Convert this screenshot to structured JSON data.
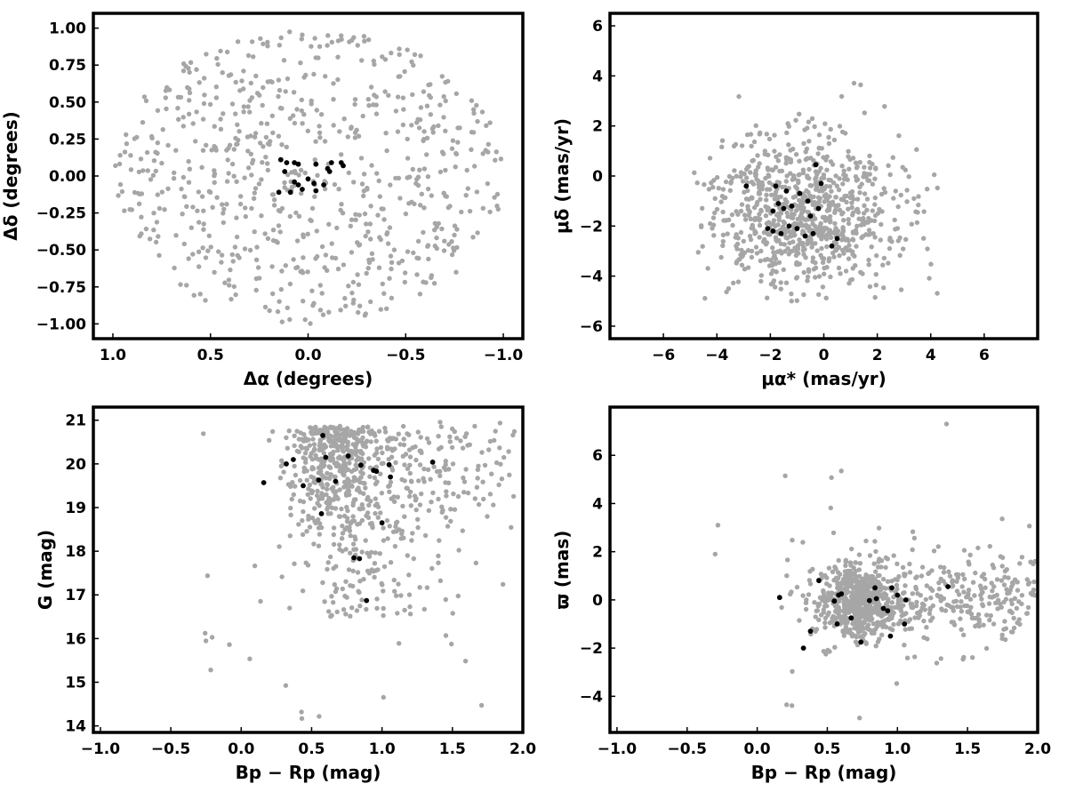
{
  "colors": {
    "field": "#a6a6a6",
    "members": "#000000"
  },
  "chart_data": [
    {
      "type": "scatter",
      "title": "",
      "xlabel": "Δα (degrees)",
      "ylabel": "Δδ (degrees)",
      "xlim": [
        1.1,
        -1.1
      ],
      "ylim": [
        -1.1,
        1.1
      ],
      "x_inverted": true,
      "xticks": [
        1.0,
        0.5,
        0.0,
        -0.5,
        -1.0
      ],
      "xtick_labels": [
        "1.0",
        "0.5",
        "0.0",
        "−0.5",
        "−1.0"
      ],
      "yticks": [
        -1.0,
        -0.75,
        -0.5,
        -0.25,
        0.0,
        0.25,
        0.5,
        0.75,
        1.0
      ],
      "ytick_labels": [
        "−1.00",
        "−0.75",
        "−0.50",
        "−0.25",
        "0.00",
        "0.25",
        "0.50",
        "0.75",
        "1.00"
      ],
      "grid": false,
      "field_gen": {
        "n": 700,
        "shape": "disk",
        "radius": 1.0,
        "seed": 11
      },
      "series": [
        {
          "role": "field",
          "values": []
        },
        {
          "role": "members",
          "values": [
            [
              0.14,
              0.11
            ],
            [
              0.12,
              0.03
            ],
            [
              0.11,
              0.09
            ],
            [
              0.07,
              0.09
            ],
            [
              0.05,
              0.08
            ],
            [
              0.15,
              -0.11
            ],
            [
              0.09,
              -0.11
            ],
            [
              0.07,
              -0.04
            ],
            [
              0.05,
              -0.06
            ],
            [
              0.03,
              -0.09
            ],
            [
              -0.03,
              -0.05
            ],
            [
              -0.04,
              -0.1
            ],
            [
              -0.04,
              0.08
            ],
            [
              -0.1,
              0.05
            ],
            [
              -0.11,
              0.03
            ],
            [
              -0.12,
              0.09
            ],
            [
              -0.08,
              -0.06
            ],
            [
              -0.17,
              0.09
            ],
            [
              -0.18,
              0.07
            ],
            [
              0.0,
              -0.02
            ]
          ]
        }
      ]
    },
    {
      "type": "scatter",
      "title": "",
      "xlabel": "μα* (mas/yr)",
      "ylabel": "μδ (mas/yr)",
      "xlim": [
        -8,
        8
      ],
      "ylim": [
        -6.5,
        6.5
      ],
      "x_inverted": false,
      "xticks": [
        -6,
        -4,
        -2,
        0,
        2,
        4,
        6
      ],
      "xtick_labels": [
        "−6",
        "−4",
        "−2",
        "0",
        "2",
        "4",
        "6"
      ],
      "yticks": [
        -6,
        -4,
        -2,
        0,
        2,
        4,
        6
      ],
      "ytick_labels": [
        "−6",
        "−4",
        "−2",
        "0",
        "2",
        "4",
        "6"
      ],
      "grid": false,
      "field_gen": {
        "n": 850,
        "shape": "gauss",
        "cx": -0.9,
        "cy": -1.6,
        "sx": 1.8,
        "sy": 1.6,
        "clip": [
          -4.9,
          4.8,
          -5.0,
          4.1
        ],
        "seed": 23
      },
      "series": [
        {
          "role": "field",
          "values": []
        },
        {
          "role": "members",
          "values": [
            [
              -0.3,
              0.45
            ],
            [
              -2.9,
              -0.4
            ],
            [
              -0.1,
              -0.3
            ],
            [
              -1.8,
              -0.4
            ],
            [
              -1.4,
              -0.6
            ],
            [
              -0.9,
              -0.7
            ],
            [
              -0.6,
              -1.0
            ],
            [
              -1.7,
              -1.1
            ],
            [
              -1.5,
              -1.3
            ],
            [
              -1.2,
              -1.2
            ],
            [
              -1.9,
              -1.4
            ],
            [
              -0.5,
              -1.6
            ],
            [
              -0.2,
              -1.3
            ],
            [
              -1.3,
              -2.0
            ],
            [
              -1.9,
              -2.2
            ],
            [
              -1.6,
              -2.3
            ],
            [
              -1.0,
              -2.1
            ],
            [
              -0.4,
              -2.3
            ],
            [
              -0.7,
              -2.4
            ],
            [
              0.5,
              -2.5
            ],
            [
              0.3,
              -2.8
            ],
            [
              -2.1,
              -2.1
            ]
          ]
        }
      ]
    },
    {
      "type": "scatter",
      "title": "",
      "xlabel": "Bp − Rp (mag)",
      "ylabel": "G (mag)",
      "xlim": [
        -1.05,
        2.0
      ],
      "ylim": [
        13.85,
        21.3
      ],
      "x_inverted": false,
      "xticks": [
        -1.0,
        -0.5,
        0.0,
        0.5,
        1.0,
        1.5,
        2.0
      ],
      "xtick_labels": [
        "−1.0",
        "−0.5",
        "0.0",
        "0.5",
        "1.0",
        "1.5",
        "2.0"
      ],
      "yticks": [
        14,
        15,
        16,
        17,
        18,
        19,
        20,
        21
      ],
      "ytick_labels": [
        "14",
        "15",
        "16",
        "17",
        "18",
        "19",
        "20",
        "21"
      ],
      "grid": false,
      "field_gen": {
        "n": 780,
        "shape": "cmd",
        "seed": 37
      },
      "series": [
        {
          "role": "field",
          "values": []
        },
        {
          "role": "members",
          "values": [
            [
              0.16,
              19.57
            ],
            [
              0.32,
              20.0
            ],
            [
              0.37,
              20.1
            ],
            [
              0.44,
              19.5
            ],
            [
              0.55,
              19.63
            ],
            [
              0.57,
              18.86
            ],
            [
              0.58,
              20.65
            ],
            [
              0.6,
              20.15
            ],
            [
              0.67,
              19.6
            ],
            [
              0.76,
              20.18
            ],
            [
              0.8,
              17.85
            ],
            [
              0.84,
              17.83
            ],
            [
              0.85,
              19.97
            ],
            [
              0.89,
              16.87
            ],
            [
              0.94,
              19.85
            ],
            [
              0.96,
              19.83
            ],
            [
              1.0,
              18.65
            ],
            [
              1.05,
              19.98
            ],
            [
              1.06,
              19.7
            ],
            [
              1.36,
              20.04
            ]
          ]
        }
      ]
    },
    {
      "type": "scatter",
      "title": "",
      "xlabel": "Bp − Rp (mag)",
      "ylabel": "ϖ (mas)",
      "xlim": [
        -1.05,
        2.0
      ],
      "ylim": [
        -5.5,
        8.0
      ],
      "x_inverted": false,
      "xticks": [
        -1.0,
        -0.5,
        0.0,
        0.5,
        1.0,
        1.5,
        2.0
      ],
      "xtick_labels": [
        "−1.0",
        "−0.5",
        "0.0",
        "0.5",
        "1.0",
        "1.5",
        "2.0"
      ],
      "yticks": [
        -4,
        -2,
        0,
        2,
        4,
        6
      ],
      "ytick_labels": [
        "−4",
        "−2",
        "0",
        "2",
        "4",
        "6"
      ],
      "grid": false,
      "field_gen": {
        "n": 900,
        "shape": "plx",
        "seed": 53
      },
      "series": [
        {
          "role": "field",
          "values": []
        },
        {
          "role": "members",
          "values": [
            [
              0.16,
              0.1
            ],
            [
              0.33,
              -2.0
            ],
            [
              0.38,
              -1.3
            ],
            [
              0.44,
              0.8
            ],
            [
              0.55,
              -0.05
            ],
            [
              0.57,
              -1.0
            ],
            [
              0.58,
              0.2
            ],
            [
              0.6,
              0.25
            ],
            [
              0.67,
              -0.75
            ],
            [
              0.74,
              -1.75
            ],
            [
              0.8,
              -0.03
            ],
            [
              0.84,
              0.5
            ],
            [
              0.85,
              0.05
            ],
            [
              0.9,
              -0.35
            ],
            [
              0.93,
              -0.45
            ],
            [
              0.95,
              -1.5
            ],
            [
              0.96,
              0.5
            ],
            [
              1.0,
              0.2
            ],
            [
              1.05,
              -1.0
            ],
            [
              1.06,
              0.0
            ],
            [
              1.36,
              0.55
            ]
          ]
        }
      ]
    }
  ]
}
